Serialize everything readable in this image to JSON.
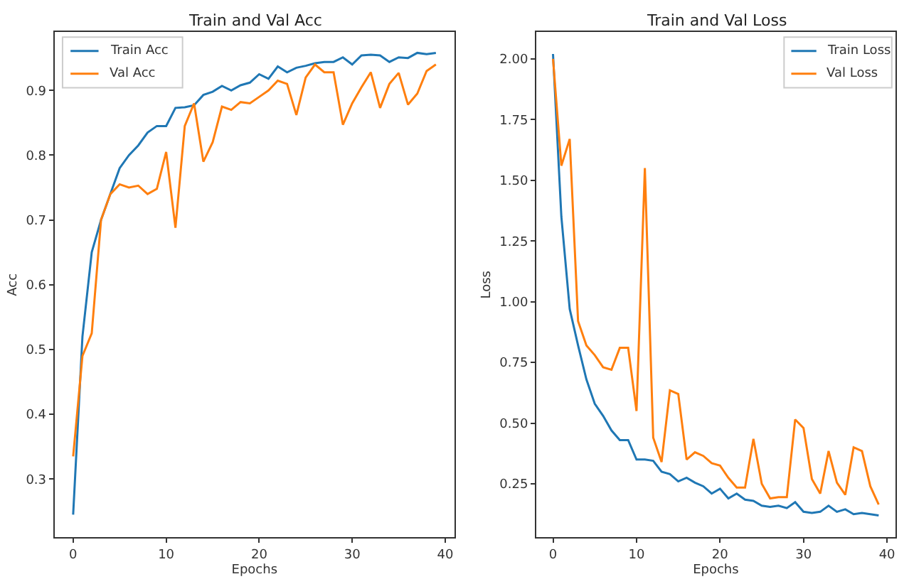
{
  "chart_data": [
    {
      "type": "line",
      "title": "Train and Val Acc",
      "xlabel": "Epochs",
      "ylabel": "Acc",
      "x": [
        0,
        1,
        2,
        3,
        4,
        5,
        6,
        7,
        8,
        9,
        10,
        11,
        12,
        13,
        14,
        15,
        16,
        17,
        18,
        19,
        20,
        21,
        22,
        23,
        24,
        25,
        26,
        27,
        28,
        29,
        30,
        31,
        32,
        33,
        34,
        35,
        36,
        37,
        38,
        39
      ],
      "series": [
        {
          "name": "Train Acc",
          "color": "#1f77b4",
          "values": [
            0.245,
            0.52,
            0.65,
            0.7,
            0.74,
            0.78,
            0.8,
            0.815,
            0.835,
            0.845,
            0.845,
            0.873,
            0.874,
            0.877,
            0.893,
            0.898,
            0.907,
            0.9,
            0.908,
            0.912,
            0.925,
            0.918,
            0.937,
            0.928,
            0.935,
            0.938,
            0.942,
            0.944,
            0.944,
            0.951,
            0.94,
            0.954,
            0.955,
            0.954,
            0.944,
            0.951,
            0.95,
            0.958,
            0.956,
            0.958
          ]
        },
        {
          "name": "Val Acc",
          "color": "#ff7f0e",
          "values": [
            0.335,
            0.49,
            0.525,
            0.7,
            0.74,
            0.755,
            0.75,
            0.753,
            0.74,
            0.748,
            0.805,
            0.688,
            0.845,
            0.88,
            0.79,
            0.82,
            0.875,
            0.87,
            0.882,
            0.88,
            0.89,
            0.9,
            0.915,
            0.91,
            0.862,
            0.92,
            0.94,
            0.928,
            0.928,
            0.847,
            0.88,
            0.905,
            0.928,
            0.873,
            0.91,
            0.927,
            0.878,
            0.895,
            0.93,
            0.94
          ]
        }
      ],
      "xlim": [
        -2,
        41
      ],
      "xticks": [
        0,
        10,
        20,
        30,
        40
      ],
      "ylim": [
        0.21,
        0.99
      ],
      "yticks": [
        0.3,
        0.4,
        0.5,
        0.6,
        0.7,
        0.8,
        0.9
      ],
      "grid": false,
      "legend": "top left",
      "marker": "none",
      "line_style": "solid"
    },
    {
      "type": "line",
      "title": "Train and Val Loss",
      "xlabel": "Epochs",
      "ylabel": "Loss",
      "x": [
        0,
        1,
        2,
        3,
        4,
        5,
        6,
        7,
        8,
        9,
        10,
        11,
        12,
        13,
        14,
        15,
        16,
        17,
        18,
        19,
        20,
        21,
        22,
        23,
        24,
        25,
        26,
        27,
        28,
        29,
        30,
        31,
        32,
        33,
        34,
        35,
        36,
        37,
        38,
        39
      ],
      "series": [
        {
          "name": "Train Loss",
          "color": "#1f77b4",
          "values": [
            2.02,
            1.35,
            0.97,
            0.82,
            0.68,
            0.58,
            0.53,
            0.47,
            0.43,
            0.43,
            0.35,
            0.35,
            0.345,
            0.3,
            0.29,
            0.26,
            0.275,
            0.255,
            0.24,
            0.21,
            0.23,
            0.19,
            0.21,
            0.185,
            0.18,
            0.16,
            0.155,
            0.16,
            0.15,
            0.175,
            0.135,
            0.13,
            0.135,
            0.16,
            0.135,
            0.145,
            0.125,
            0.13,
            0.125,
            0.12
          ]
        },
        {
          "name": "Val Loss",
          "color": "#ff7f0e",
          "values": [
            2.0,
            1.56,
            1.67,
            0.92,
            0.82,
            0.78,
            0.73,
            0.72,
            0.81,
            0.81,
            0.55,
            1.55,
            0.44,
            0.34,
            0.635,
            0.62,
            0.35,
            0.38,
            0.365,
            0.335,
            0.325,
            0.275,
            0.235,
            0.235,
            0.435,
            0.25,
            0.19,
            0.195,
            0.195,
            0.515,
            0.48,
            0.27,
            0.21,
            0.385,
            0.255,
            0.205,
            0.4,
            0.385,
            0.24,
            0.165
          ]
        }
      ],
      "xlim": [
        -2,
        41
      ],
      "xticks": [
        0,
        10,
        20,
        30,
        40
      ],
      "ylim": [
        0.03,
        2.11
      ],
      "yticks": [
        {
          "value": 0.25,
          "label": "0.25"
        },
        {
          "value": 0.5,
          "label": "0.50"
        },
        {
          "value": 0.75,
          "label": "0.75"
        },
        {
          "value": 1.0,
          "label": "1.00"
        },
        {
          "value": 1.25,
          "label": "1.25"
        },
        {
          "value": 1.5,
          "label": "1.50"
        },
        {
          "value": 1.75,
          "label": "1.75"
        },
        {
          "value": 2.0,
          "label": "2.00"
        }
      ],
      "grid": false,
      "legend": "top right",
      "marker": "none",
      "line_style": "solid"
    }
  ]
}
